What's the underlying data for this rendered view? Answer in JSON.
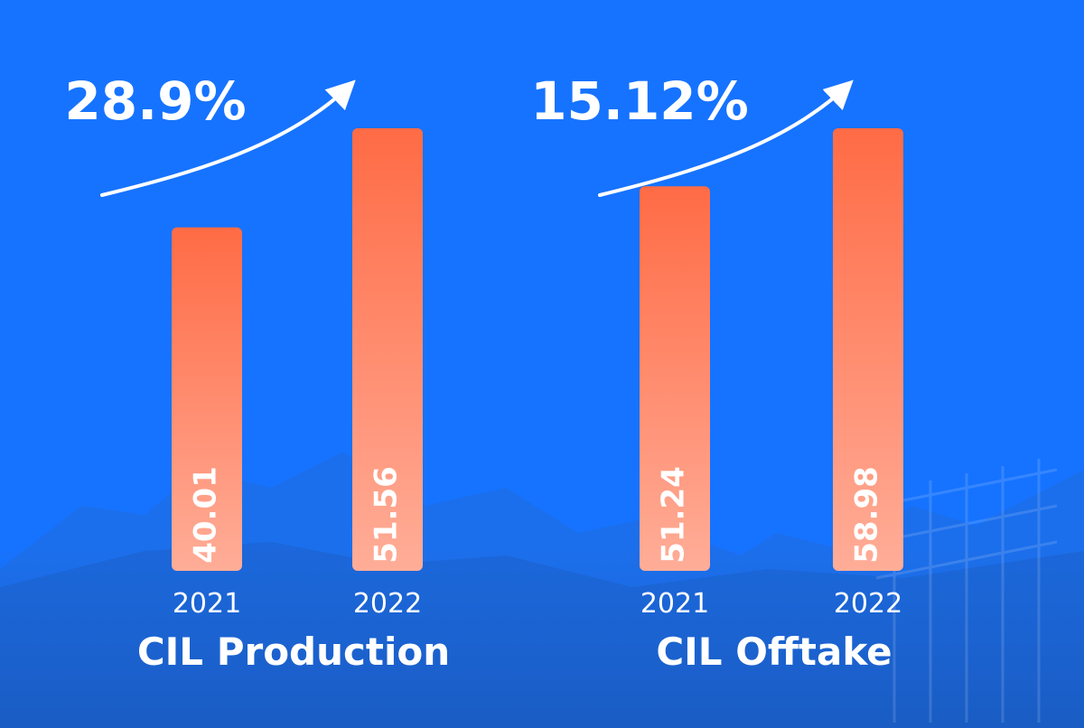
{
  "colors": {
    "background": "#1673ff",
    "bar_top": "#ff6b45",
    "bar_bottom": "#ffad98",
    "text": "#ffffff"
  },
  "chart_data": [
    {
      "type": "bar",
      "title": "CIL Production",
      "growth_label": "28.9%",
      "categories": [
        "2021",
        "2022"
      ],
      "values": [
        40.01,
        51.56
      ],
      "value_labels": [
        "40.01",
        "51.56"
      ],
      "ylim": [
        0,
        51.56
      ],
      "grid": false
    },
    {
      "type": "bar",
      "title": "CIL Offtake",
      "growth_label": "15.12%",
      "categories": [
        "2021",
        "2022"
      ],
      "values": [
        51.24,
        58.98
      ],
      "value_labels": [
        "51.24",
        "58.98"
      ],
      "ylim": [
        0,
        58.98
      ],
      "grid": false
    }
  ]
}
